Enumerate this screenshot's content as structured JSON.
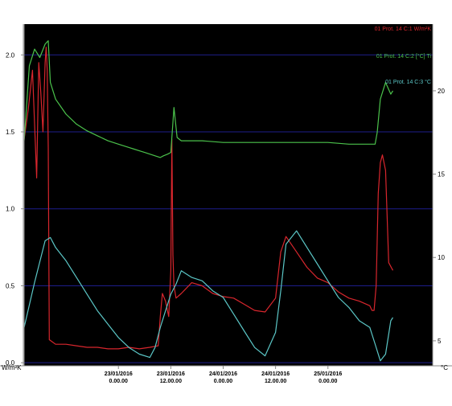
{
  "chart_data": {
    "type": "line",
    "title": "",
    "xlabel": "",
    "ylabel_left": "W/m²K",
    "ylabel_right": "°C",
    "ylim_left": [
      -0.02,
      2.2
    ],
    "ylim_right": [
      3.5,
      24
    ],
    "yticks_left": [
      "0.0",
      "0.5",
      "1.0",
      "1.5",
      "2.0"
    ],
    "yticks_left_values": [
      0.0,
      0.5,
      1.0,
      1.5,
      2.0
    ],
    "yticks_right": [
      "5",
      "10",
      "15",
      "20"
    ],
    "yticks_right_values": [
      5,
      10,
      15,
      20
    ],
    "xrange_days": [
      22.1,
      26.0
    ],
    "xticks": [
      {
        "date": "23/01/2016",
        "time": "0.00.00",
        "x": 23.0
      },
      {
        "date": "23/01/2016",
        "time": "12.00.00",
        "x": 23.5
      },
      {
        "date": "24/01/2016",
        "time": "0.00.00",
        "x": 24.0
      },
      {
        "date": "24/01/2016",
        "time": "12.00.00",
        "x": 24.5
      },
      {
        "date": "25/01/2016",
        "time": "0.00.00",
        "x": 25.0
      }
    ],
    "grid": {
      "horizontal": true,
      "vertical": false,
      "color": "#1e1e8c"
    },
    "background": "#000000",
    "legend_position": "top-right, inside plot",
    "series": [
      {
        "name": "01 Prot. 14 C:1 W/m²K",
        "axis": "left",
        "color": "#d8262d",
        "x": [
          22.1,
          22.14,
          22.18,
          22.2,
          22.22,
          22.24,
          22.26,
          22.28,
          22.3,
          22.31,
          22.32,
          22.33,
          22.34,
          22.4,
          22.5,
          22.6,
          22.7,
          22.8,
          22.9,
          23.0,
          23.1,
          23.2,
          23.3,
          23.38,
          23.4,
          23.42,
          23.45,
          23.48,
          23.5,
          23.51,
          23.52,
          23.53,
          23.55,
          23.6,
          23.7,
          23.8,
          23.9,
          24.0,
          24.1,
          24.2,
          24.3,
          24.4,
          24.5,
          24.55,
          24.6,
          24.7,
          24.8,
          24.9,
          25.0,
          25.1,
          25.2,
          25.3,
          25.4,
          25.42,
          25.44,
          25.46,
          25.48,
          25.5,
          25.52,
          25.55,
          25.58,
          25.62
        ],
        "y": [
          1.45,
          1.65,
          1.9,
          1.55,
          1.2,
          1.95,
          1.75,
          1.5,
          1.95,
          2.05,
          1.9,
          1.4,
          0.15,
          0.12,
          0.12,
          0.11,
          0.1,
          0.1,
          0.09,
          0.09,
          0.1,
          0.09,
          0.1,
          0.11,
          0.3,
          0.45,
          0.4,
          0.3,
          0.6,
          1.45,
          0.7,
          0.5,
          0.42,
          0.45,
          0.52,
          0.5,
          0.45,
          0.43,
          0.42,
          0.38,
          0.34,
          0.33,
          0.42,
          0.72,
          0.82,
          0.72,
          0.62,
          0.55,
          0.52,
          0.46,
          0.42,
          0.4,
          0.37,
          0.34,
          0.34,
          0.5,
          1.1,
          1.3,
          1.35,
          1.25,
          0.65,
          0.6
        ]
      },
      {
        "name": "01 Prot. 14 C:2 [°C] Ti",
        "axis": "right",
        "color": "#4bc24b",
        "x": [
          22.1,
          22.15,
          22.2,
          22.25,
          22.3,
          22.33,
          22.35,
          22.4,
          22.5,
          22.6,
          22.7,
          22.8,
          22.9,
          23.0,
          23.1,
          23.15,
          23.2,
          23.25,
          23.3,
          23.35,
          23.4,
          23.43,
          23.47,
          23.5,
          23.53,
          23.56,
          23.6,
          23.8,
          24.0,
          24.2,
          24.4,
          24.6,
          24.8,
          25.0,
          25.2,
          25.4,
          25.45,
          25.47,
          25.5,
          25.55,
          25.6,
          25.62
        ],
        "y": [
          17.0,
          21.5,
          22.5,
          22.0,
          22.8,
          23.0,
          20.5,
          19.5,
          18.6,
          18.0,
          17.6,
          17.3,
          17.0,
          16.8,
          16.6,
          16.5,
          16.4,
          16.3,
          16.2,
          16.1,
          16.0,
          16.1,
          16.2,
          16.3,
          19.0,
          17.2,
          17.0,
          17.0,
          16.9,
          16.9,
          16.9,
          16.9,
          16.9,
          16.9,
          16.8,
          16.8,
          16.8,
          17.5,
          19.5,
          20.5,
          19.8,
          20.0
        ]
      },
      {
        "name": "01 Prot. 14 C:3 °C",
        "axis": "right",
        "color": "#5bc6c6",
        "x": [
          22.1,
          22.2,
          22.3,
          22.35,
          22.4,
          22.5,
          22.6,
          22.7,
          22.8,
          22.9,
          23.0,
          23.1,
          23.2,
          23.3,
          23.35,
          23.4,
          23.45,
          23.5,
          23.55,
          23.6,
          23.7,
          23.8,
          23.9,
          24.0,
          24.1,
          24.2,
          24.3,
          24.4,
          24.5,
          24.55,
          24.6,
          24.7,
          24.8,
          24.9,
          25.0,
          25.1,
          25.2,
          25.3,
          25.4,
          25.45,
          25.5,
          25.55,
          25.6,
          25.62
        ],
        "y": [
          5.8,
          8.5,
          11.0,
          11.2,
          10.6,
          9.8,
          8.8,
          7.8,
          6.8,
          6.0,
          5.2,
          4.6,
          4.2,
          4.0,
          4.6,
          5.8,
          6.8,
          7.8,
          8.4,
          9.2,
          8.8,
          8.6,
          8.0,
          7.6,
          6.6,
          5.6,
          4.6,
          4.1,
          5.5,
          8.0,
          10.8,
          11.6,
          10.6,
          9.6,
          8.6,
          7.6,
          7.0,
          6.2,
          5.8,
          4.8,
          3.8,
          4.2,
          6.2,
          6.4
        ]
      }
    ]
  }
}
